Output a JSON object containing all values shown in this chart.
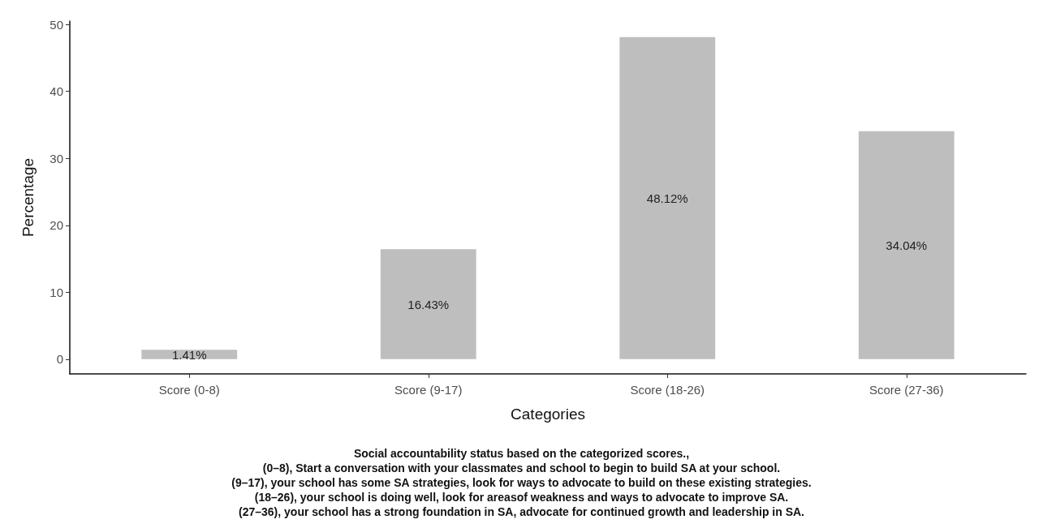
{
  "chart_data": {
    "type": "bar",
    "xlabel": "Categories",
    "ylabel": "Percentage",
    "categories": [
      "Score (0-8)",
      "Score (9-17)",
      "Score (18-26)",
      "Score (27-36)"
    ],
    "values": [
      1.41,
      16.43,
      48.12,
      34.04
    ],
    "value_labels": [
      "1.41%",
      "16.43%",
      "48.12%",
      "34.04%"
    ],
    "color": "#bebebe",
    "ylim": [
      -2.2,
      50.5
    ],
    "yticks": [
      0,
      10,
      20,
      30,
      40,
      50
    ],
    "grid": false,
    "annotations": [
      "Social accountability status based on the categorized scores.,",
      "(0–8), Start a conversation with your classmates and school to begin to build SA at your school.",
      "(9–17), your school has some SA strategies, look for ways to advocate to build on these existing strategies.",
      "(18–26), your school is doing well, look for areasof weakness and ways to advocate to improve SA.",
      "(27–36), your school has a strong foundation in SA, advocate for continued growth and leadership in SA."
    ]
  }
}
